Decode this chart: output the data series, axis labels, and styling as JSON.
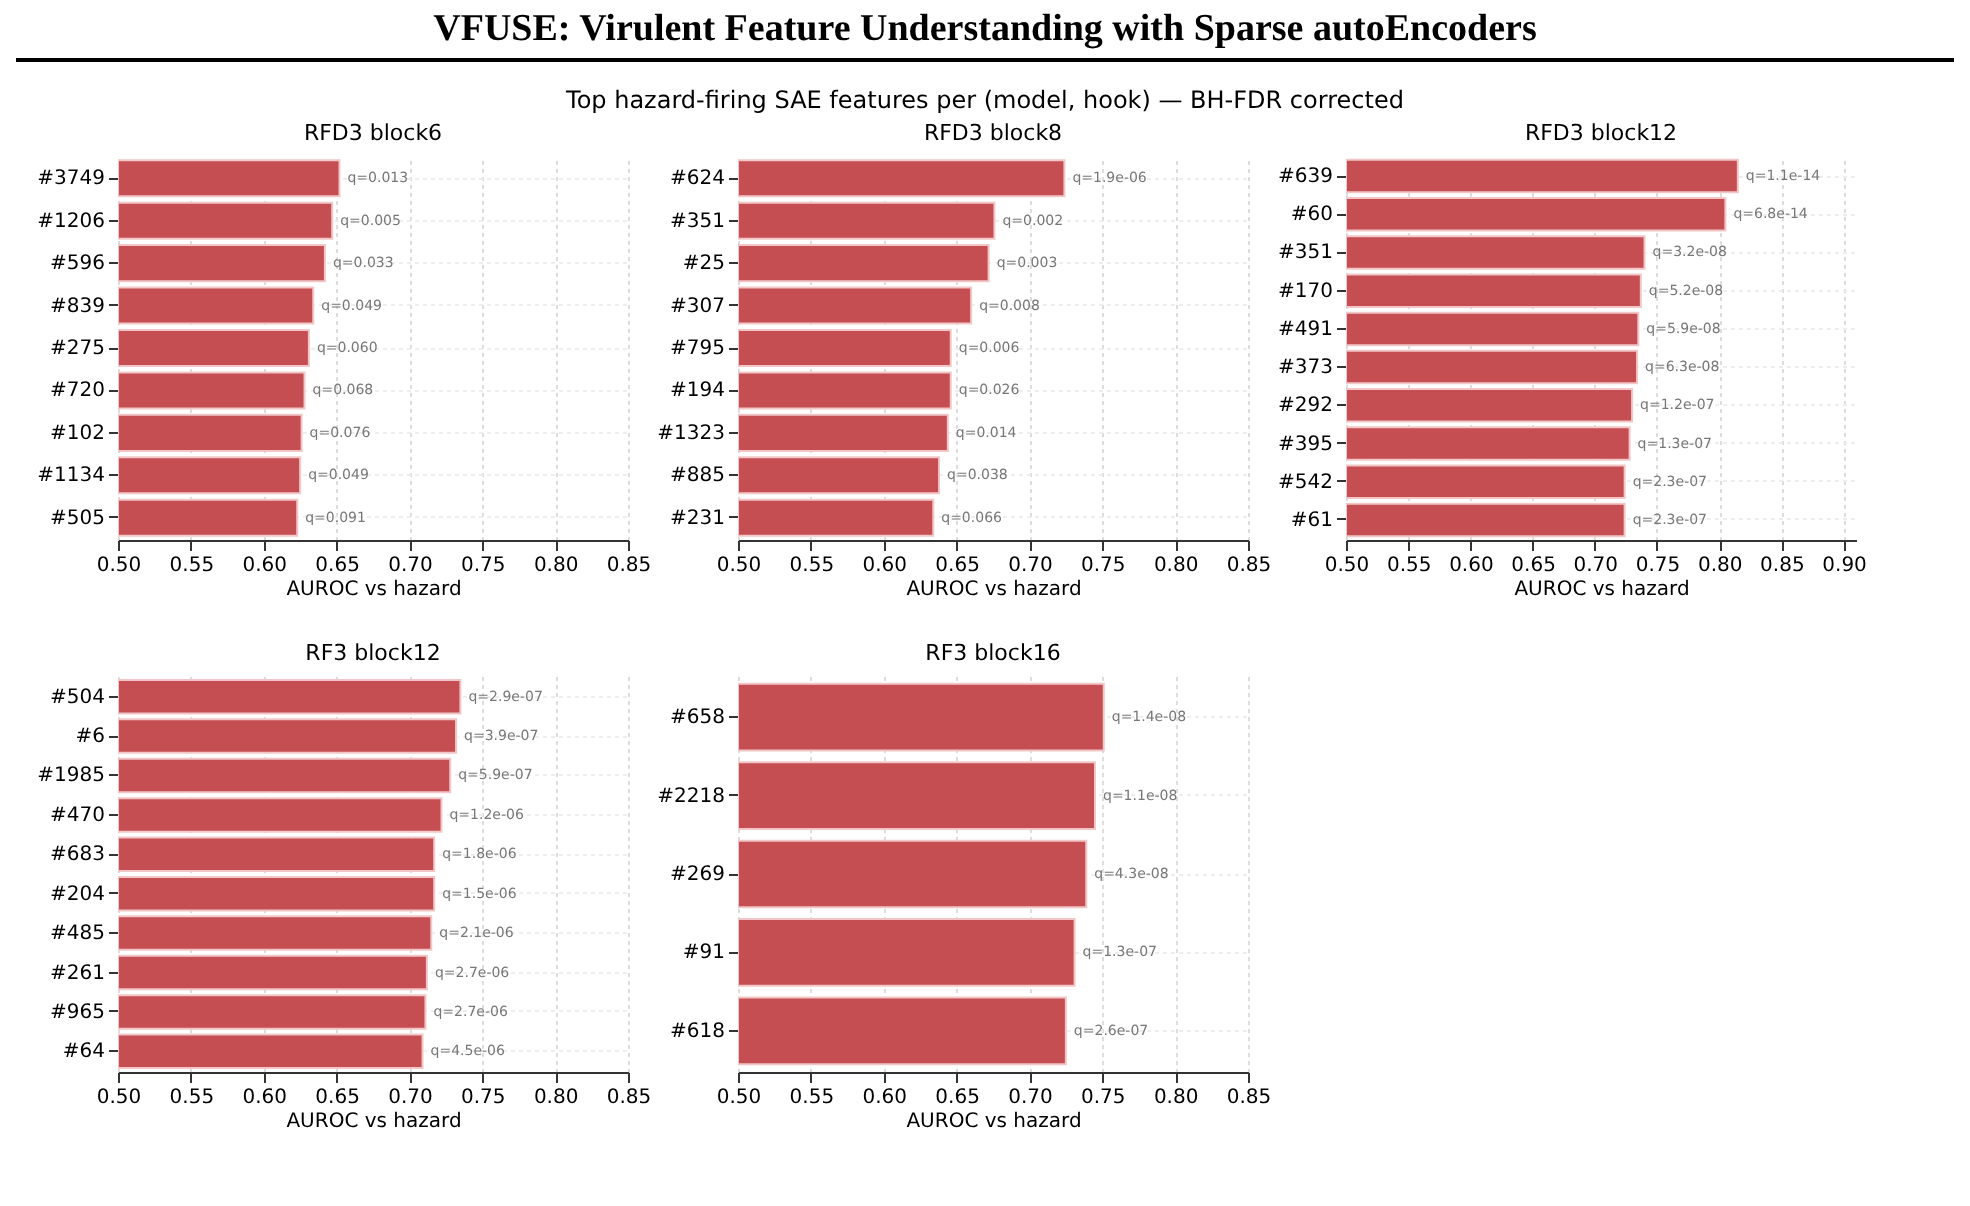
{
  "chart_data": [
    {
      "type": "bar",
      "orientation": "horizontal",
      "title": "RFD3 block6",
      "xlabel": "AUROC vs hazard",
      "categories": [
        "#3749",
        "#1206",
        "#596",
        "#839",
        "#275",
        "#720",
        "#102",
        "#1134",
        "#505"
      ],
      "values": [
        0.652,
        0.647,
        0.642,
        0.634,
        0.631,
        0.628,
        0.626,
        0.625,
        0.623
      ],
      "color": "#c44e52",
      "xlim": [
        0.5,
        0.85
      ],
      "xticks": [
        {
          "value": 0.5,
          "label": "0.50"
        },
        {
          "value": 0.55,
          "label": "0.55"
        },
        {
          "value": 0.6,
          "label": "0.60"
        },
        {
          "value": 0.65,
          "label": "0.65"
        },
        {
          "value": 0.7,
          "label": "0.70"
        },
        {
          "value": 0.75,
          "label": "0.75"
        },
        {
          "value": 0.8,
          "label": "0.80"
        },
        {
          "value": 0.85,
          "label": "0.85"
        }
      ],
      "grid": true,
      "annotations": [
        "VFUSE: Virulent Feature Understanding with Sparse autoEncoders",
        "Top hazard-firing SAE features per (model, hook) — BH-FDR corrected",
        {
          "text": "q=0.013",
          "x": 0.652,
          "y": "#3749"
        },
        {
          "text": "q=0.005",
          "x": 0.647,
          "y": "#1206"
        },
        {
          "text": "q=0.033",
          "x": 0.642,
          "y": "#596"
        },
        {
          "text": "q=0.049",
          "x": 0.634,
          "y": "#839"
        },
        {
          "text": "q=0.060",
          "x": 0.631,
          "y": "#275"
        },
        {
          "text": "q=0.068",
          "x": 0.628,
          "y": "#720"
        },
        {
          "text": "q=0.076",
          "x": 0.626,
          "y": "#102"
        },
        {
          "text": "q=0.049",
          "x": 0.625,
          "y": "#1134"
        },
        {
          "text": "q=0.091",
          "x": 0.623,
          "y": "#505"
        }
      ]
    },
    {
      "type": "bar",
      "orientation": "horizontal",
      "title": "RFD3 block8",
      "xlabel": "AUROC vs hazard",
      "categories": [
        "#624",
        "#351",
        "#25",
        "#307",
        "#795",
        "#194",
        "#1323",
        "#885",
        "#231"
      ],
      "values": [
        0.724,
        0.676,
        0.672,
        0.66,
        0.646,
        0.646,
        0.644,
        0.638,
        0.634
      ],
      "color": "#c44e52",
      "xlim": [
        0.5,
        0.85
      ],
      "xticks": [
        {
          "value": 0.5,
          "label": "0.50"
        },
        {
          "value": 0.55,
          "label": "0.55"
        },
        {
          "value": 0.6,
          "label": "0.60"
        },
        {
          "value": 0.65,
          "label": "0.65"
        },
        {
          "value": 0.7,
          "label": "0.70"
        },
        {
          "value": 0.75,
          "label": "0.75"
        },
        {
          "value": 0.8,
          "label": "0.80"
        },
        {
          "value": 0.85,
          "label": "0.85"
        }
      ],
      "grid": true,
      "annotations": [
        {
          "text": "q=1.9e-06",
          "x": 0.724,
          "y": "#624"
        },
        {
          "text": "q=0.002",
          "x": 0.676,
          "y": "#351"
        },
        {
          "text": "q=0.003",
          "x": 0.672,
          "y": "#25"
        },
        {
          "text": "q=0.008",
          "x": 0.66,
          "y": "#307"
        },
        {
          "text": "q=0.006",
          "x": 0.646,
          "y": "#795"
        },
        {
          "text": "q=0.026",
          "x": 0.646,
          "y": "#194"
        },
        {
          "text": "q=0.014",
          "x": 0.644,
          "y": "#1323"
        },
        {
          "text": "q=0.038",
          "x": 0.638,
          "y": "#885"
        },
        {
          "text": "q=0.066",
          "x": 0.634,
          "y": "#231"
        }
      ]
    },
    {
      "type": "bar",
      "orientation": "horizontal",
      "title": "RFD3 block12",
      "xlabel": "AUROC vs hazard",
      "categories": [
        "#639",
        "#60",
        "#351",
        "#170",
        "#491",
        "#373",
        "#292",
        "#395",
        "#542",
        "#61"
      ],
      "values": [
        0.815,
        0.805,
        0.74,
        0.737,
        0.735,
        0.734,
        0.73,
        0.728,
        0.724,
        0.724
      ],
      "color": "#c44e52",
      "xlim": [
        0.5,
        0.91
      ],
      "xticks": [
        {
          "value": 0.5,
          "label": "0.50"
        },
        {
          "value": 0.55,
          "label": "0.55"
        },
        {
          "value": 0.6,
          "label": "0.60"
        },
        {
          "value": 0.65,
          "label": "0.65"
        },
        {
          "value": 0.7,
          "label": "0.70"
        },
        {
          "value": 0.75,
          "label": "0.75"
        },
        {
          "value": 0.8,
          "label": "0.80"
        },
        {
          "value": 0.85,
          "label": "0.85"
        },
        {
          "value": 0.9,
          "label": "0.90"
        }
      ],
      "grid": true,
      "annotations": [
        {
          "text": "q=1.1e-14",
          "x": 0.815,
          "y": "#639"
        },
        {
          "text": "q=6.8e-14",
          "x": 0.805,
          "y": "#60"
        },
        {
          "text": "q=3.2e-08",
          "x": 0.74,
          "y": "#351"
        },
        {
          "text": "q=5.2e-08",
          "x": 0.737,
          "y": "#170"
        },
        {
          "text": "q=5.9e-08",
          "x": 0.735,
          "y": "#491"
        },
        {
          "text": "q=6.3e-08",
          "x": 0.734,
          "y": "#373"
        },
        {
          "text": "q=1.2e-07",
          "x": 0.73,
          "y": "#292"
        },
        {
          "text": "q=1.3e-07",
          "x": 0.728,
          "y": "#395"
        },
        {
          "text": "q=2.3e-07",
          "x": 0.724,
          "y": "#542"
        },
        {
          "text": "q=2.3e-07",
          "x": 0.724,
          "y": "#61"
        }
      ]
    },
    {
      "type": "bar",
      "orientation": "horizontal",
      "title": "RF3 block12",
      "xlabel": "AUROC vs hazard",
      "categories": [
        "#504",
        "#6",
        "#1985",
        "#470",
        "#683",
        "#204",
        "#485",
        "#261",
        "#965",
        "#64"
      ],
      "values": [
        0.735,
        0.732,
        0.728,
        0.722,
        0.717,
        0.717,
        0.715,
        0.712,
        0.711,
        0.709
      ],
      "color": "#c44e52",
      "xlim": [
        0.5,
        0.85
      ],
      "xticks": [
        {
          "value": 0.5,
          "label": "0.50"
        },
        {
          "value": 0.55,
          "label": "0.55"
        },
        {
          "value": 0.6,
          "label": "0.60"
        },
        {
          "value": 0.65,
          "label": "0.65"
        },
        {
          "value": 0.7,
          "label": "0.70"
        },
        {
          "value": 0.75,
          "label": "0.75"
        },
        {
          "value": 0.8,
          "label": "0.80"
        },
        {
          "value": 0.85,
          "label": "0.85"
        }
      ],
      "grid": true,
      "annotations": [
        {
          "text": "q=2.9e-07",
          "x": 0.735,
          "y": "#504"
        },
        {
          "text": "q=3.9e-07",
          "x": 0.732,
          "y": "#6"
        },
        {
          "text": "q=5.9e-07",
          "x": 0.728,
          "y": "#1985"
        },
        {
          "text": "q=1.2e-06",
          "x": 0.722,
          "y": "#470"
        },
        {
          "text": "q=1.8e-06",
          "x": 0.717,
          "y": "#683"
        },
        {
          "text": "q=1.5e-06",
          "x": 0.717,
          "y": "#204"
        },
        {
          "text": "q=2.1e-06",
          "x": 0.715,
          "y": "#485"
        },
        {
          "text": "q=2.7e-06",
          "x": 0.712,
          "y": "#261"
        },
        {
          "text": "q=2.7e-06",
          "x": 0.711,
          "y": "#965"
        },
        {
          "text": "q=4.5e-06",
          "x": 0.709,
          "y": "#64"
        }
      ]
    },
    {
      "type": "bar",
      "orientation": "horizontal",
      "title": "RF3 block16",
      "xlabel": "AUROC vs hazard",
      "categories": [
        "#658",
        "#2218",
        "#269",
        "#91",
        "#618"
      ],
      "values": [
        0.751,
        0.745,
        0.739,
        0.731,
        0.725
      ],
      "color": "#c44e52",
      "xlim": [
        0.5,
        0.85
      ],
      "xticks": [
        {
          "value": 0.5,
          "label": "0.50"
        },
        {
          "value": 0.55,
          "label": "0.55"
        },
        {
          "value": 0.6,
          "label": "0.60"
        },
        {
          "value": 0.65,
          "label": "0.65"
        },
        {
          "value": 0.7,
          "label": "0.70"
        },
        {
          "value": 0.75,
          "label": "0.75"
        },
        {
          "value": 0.8,
          "label": "0.80"
        },
        {
          "value": 0.85,
          "label": "0.85"
        }
      ],
      "grid": true,
      "annotations": [
        {
          "text": "q=1.4e-08",
          "x": 0.751,
          "y": "#658"
        },
        {
          "text": "q=1.1e-08",
          "x": 0.745,
          "y": "#2218"
        },
        {
          "text": "q=4.3e-08",
          "x": 0.739,
          "y": "#269"
        },
        {
          "text": "q=1.3e-07",
          "x": 0.731,
          "y": "#91"
        },
        {
          "text": "q=2.6e-07",
          "x": 0.725,
          "y": "#618"
        }
      ]
    }
  ]
}
